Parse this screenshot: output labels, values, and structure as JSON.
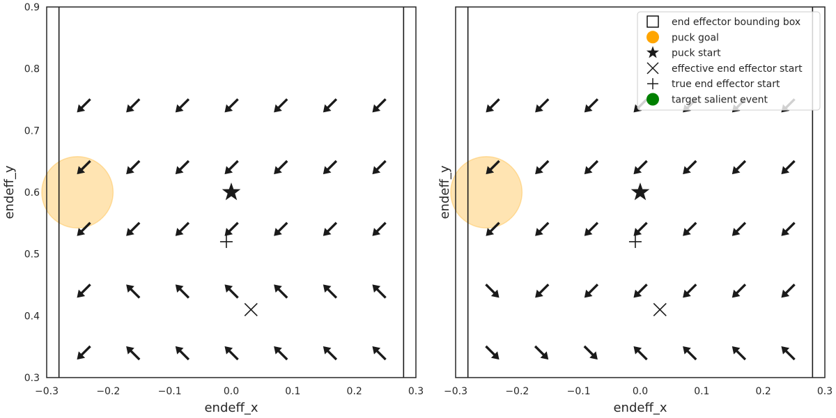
{
  "chart_data": [
    {
      "type": "quiver",
      "title": "",
      "xlabel": "endeff_x",
      "ylabel": "endeff_y",
      "xlim": [
        -0.3,
        0.3
      ],
      "ylim": [
        0.3,
        0.9
      ],
      "xticks": [
        "−0.3",
        "−0.2",
        "−0.1",
        "0.0",
        "0.1",
        "0.2",
        "0.3"
      ],
      "yticks": [
        "0.3",
        "0.4",
        "0.5",
        "0.6",
        "0.7",
        "0.8",
        "0.9"
      ],
      "show_yticks": true,
      "grid": false,
      "bounding_box_x": [
        -0.28,
        0.28
      ],
      "puck_goal": {
        "x": -0.25,
        "y": 0.6,
        "radius": 0.058,
        "color": "#FFA500"
      },
      "puck_start": {
        "x": 0.0,
        "y": 0.6
      },
      "effective_end_effector_start": {
        "x": 0.032,
        "y": 0.41
      },
      "true_end_effector_start": {
        "x": -0.008,
        "y": 0.52
      },
      "grid_x": [
        -0.24,
        -0.16,
        -0.08,
        0.0,
        0.08,
        0.16,
        0.24
      ],
      "grid_y": [
        0.34,
        0.44,
        0.54,
        0.64,
        0.74
      ],
      "arrow_directions": [
        [
          "SW",
          "NW",
          "NW",
          "NW",
          "NW",
          "NW",
          "NW"
        ],
        [
          "SW",
          "NW",
          "NW",
          "NW",
          "NW",
          "NW",
          "NW"
        ],
        [
          "SW",
          "SW",
          "SW",
          "SW",
          "SW",
          "SW",
          "SW"
        ],
        [
          "SW",
          "SW",
          "SW",
          "SW",
          "SW",
          "SW",
          "SW"
        ],
        [
          "SW",
          "SW",
          "SW",
          "SW",
          "SW",
          "SW",
          "SW"
        ]
      ],
      "arrow_color": "#1a1a1a"
    },
    {
      "type": "quiver",
      "title": "",
      "xlabel": "endeff_x",
      "ylabel": "endeff_y",
      "xlim": [
        -0.3,
        0.3
      ],
      "ylim": [
        0.3,
        0.9
      ],
      "xticks": [
        "−0.3",
        "−0.2",
        "−0.1",
        "0.0",
        "0.1",
        "0.2",
        "0.3"
      ],
      "yticks": [],
      "show_yticks": false,
      "grid": false,
      "bounding_box_x": [
        -0.28,
        0.28
      ],
      "puck_goal": {
        "x": -0.25,
        "y": 0.6,
        "radius": 0.058,
        "color": "#FFA500"
      },
      "puck_start": {
        "x": 0.0,
        "y": 0.6
      },
      "effective_end_effector_start": {
        "x": 0.032,
        "y": 0.41
      },
      "true_end_effector_start": {
        "x": -0.008,
        "y": 0.52
      },
      "grid_x": [
        -0.24,
        -0.16,
        -0.08,
        0.0,
        0.08,
        0.16,
        0.24
      ],
      "grid_y": [
        0.34,
        0.44,
        0.54,
        0.64,
        0.74
      ],
      "arrow_directions": [
        [
          "SE",
          "SE",
          "SE",
          "NW",
          "NW",
          "NW",
          "NW"
        ],
        [
          "SE",
          "SW",
          "SW",
          "SW",
          "SW",
          "SW",
          "SW"
        ],
        [
          "SW",
          "SW",
          "SW",
          "SW",
          "SW",
          "SW",
          "SW"
        ],
        [
          "SW",
          "SW",
          "SW",
          "SW",
          "SW",
          "SW",
          "SW"
        ],
        [
          "SW",
          "SW",
          "SW",
          "SW",
          "SW",
          "SW",
          "SW"
        ]
      ],
      "arrow_color": "#1a1a1a",
      "legend": {
        "location": "upper-right",
        "entries": [
          {
            "label": "end effector bounding box",
            "marker": "square-outline",
            "color": "#000000"
          },
          {
            "label": "puck goal",
            "marker": "circle",
            "color": "#FFA500"
          },
          {
            "label": "puck start",
            "marker": "star",
            "color": "#1a1a1a"
          },
          {
            "label": "effective end effector start",
            "marker": "x",
            "color": "#1a1a1a"
          },
          {
            "label": "true end effector start",
            "marker": "plus",
            "color": "#1a1a1a"
          },
          {
            "label": "target salient event",
            "marker": "circle",
            "color": "#008000"
          }
        ]
      }
    }
  ]
}
